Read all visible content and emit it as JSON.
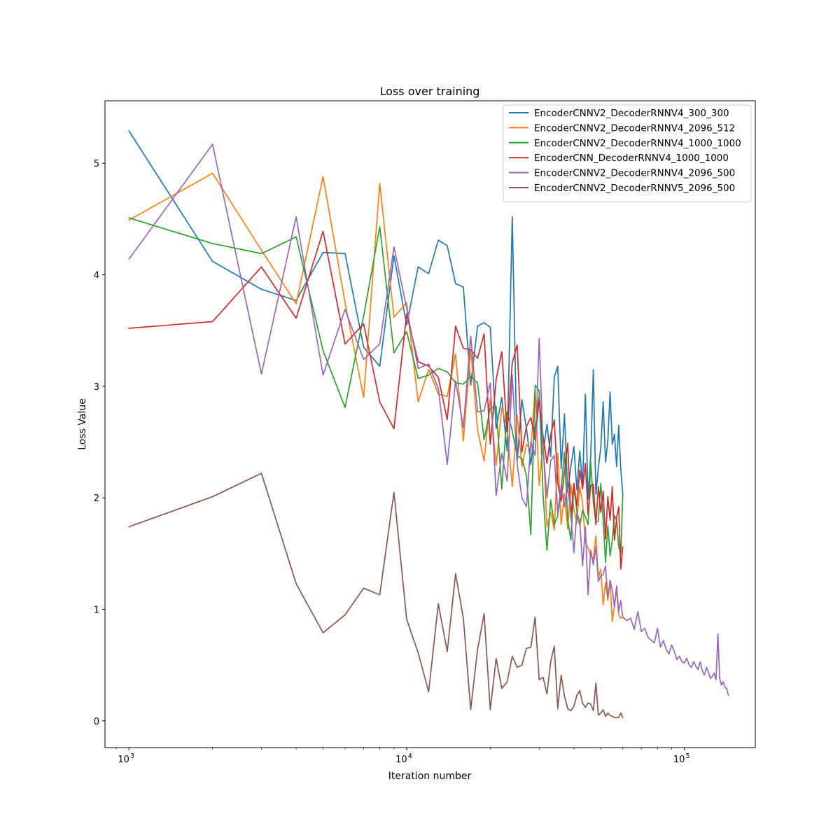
{
  "chart_data": {
    "type": "line",
    "title": "Loss over training",
    "xlabel": "Iteration number",
    "ylabel": "Loss Value",
    "xscale": "log",
    "xlim": [
      820,
      180000
    ],
    "ylim": [
      -0.24,
      5.56
    ],
    "x_ticks": [
      {
        "value": 1000,
        "base": "10",
        "exp": "3"
      },
      {
        "value": 10000,
        "base": "10",
        "exp": "4"
      },
      {
        "value": 100000,
        "base": "10",
        "exp": "5"
      }
    ],
    "y_ticks": [
      {
        "value": 0,
        "label": "0"
      },
      {
        "value": 1,
        "label": "1"
      },
      {
        "value": 2,
        "label": "2"
      },
      {
        "value": 3,
        "label": "3"
      },
      {
        "value": 4,
        "label": "4"
      },
      {
        "value": 5,
        "label": "5"
      }
    ],
    "legend_position": "top-right",
    "series": [
      {
        "name": "EncoderCNNV2_DecoderRNNV4_300_300",
        "color": "#1f77b4",
        "x": [
          1000,
          2000,
          3000,
          4000,
          5000,
          6000,
          7000,
          8000,
          9000,
          10000,
          11000,
          12000,
          13000,
          14000,
          15000,
          16000,
          17000,
          18000,
          19000,
          20000,
          21000,
          22000,
          23000,
          24000,
          25000,
          26000,
          27000,
          28000,
          29000,
          30000,
          31000,
          32000,
          33000,
          34000,
          35000,
          36000,
          37000,
          38000,
          39000,
          40000,
          41000,
          42000,
          43000,
          44000,
          45000,
          46000,
          47000,
          48000,
          49000,
          50000,
          51000,
          52000,
          53000,
          54000,
          55000,
          56000,
          57000,
          58000,
          59000,
          60000
        ],
        "y": [
          5.29,
          4.12,
          3.87,
          3.77,
          4.2,
          4.19,
          3.35,
          3.18,
          4.17,
          3.55,
          4.07,
          4.01,
          4.31,
          4.26,
          3.92,
          3.89,
          3.01,
          3.54,
          3.57,
          3.53,
          2.62,
          2.9,
          2.42,
          4.52,
          2.33,
          2.88,
          2.62,
          2.3,
          2.63,
          2.91,
          2.4,
          2.66,
          2.37,
          3.08,
          3.18,
          2.26,
          2.75,
          2.05,
          2.28,
          2.46,
          2.07,
          2.42,
          2.11,
          2.93,
          1.99,
          2.38,
          3.15,
          2.03,
          2.27,
          2.45,
          2.86,
          2.32,
          2.51,
          2.95,
          2.48,
          2.57,
          2.28,
          2.65,
          2.26,
          2.03
        ]
      },
      {
        "name": "EncoderCNNV2_DecoderRNNV4_2096_512",
        "color": "#ff7f0e",
        "x": [
          1000,
          2000,
          3000,
          4000,
          5000,
          6000,
          7000,
          8000,
          9000,
          10000,
          11000,
          12000,
          13000,
          14000,
          15000,
          16000,
          17000,
          18000,
          19000,
          20000,
          21000,
          22000,
          23000,
          24000,
          25000,
          26000,
          27000,
          28000,
          29000,
          30000,
          31000,
          32000,
          33000,
          34000,
          35000,
          36000,
          37000,
          38000,
          39000,
          40000,
          41000,
          42000,
          43000,
          44000,
          45000,
          46000,
          47000,
          48000,
          49000,
          50000,
          51000,
          52000,
          53000,
          54000,
          55000,
          56000,
          57000,
          58000,
          59000,
          60000
        ],
        "y": [
          4.49,
          4.91,
          4.22,
          3.74,
          4.88,
          3.75,
          2.9,
          4.82,
          3.62,
          3.75,
          2.86,
          3.15,
          2.93,
          2.91,
          3.29,
          2.51,
          3.33,
          2.61,
          2.33,
          2.89,
          2.29,
          2.81,
          2.63,
          2.1,
          2.74,
          2.28,
          2.48,
          2.43,
          2.98,
          2.11,
          2.5,
          1.74,
          1.87,
          1.71,
          2.4,
          1.76,
          2.04,
          1.72,
          2.12,
          1.9,
          1.77,
          2.1,
          1.95,
          1.6,
          1.55,
          1.48,
          1.45,
          1.66,
          1.28,
          1.36,
          1.04,
          1.24,
          1.08,
          1.25,
          0.89,
          1.03,
          1.18,
          0.95,
          0.92,
          0.93
        ]
      },
      {
        "name": "EncoderCNNV2_DecoderRNNV4_1000_1000",
        "color": "#2ca02c",
        "x": [
          1000,
          2000,
          3000,
          4000,
          5000,
          6000,
          7000,
          8000,
          9000,
          10000,
          11000,
          12000,
          13000,
          14000,
          15000,
          16000,
          17000,
          18000,
          19000,
          20000,
          21000,
          22000,
          23000,
          24000,
          25000,
          26000,
          27000,
          28000,
          29000,
          30000,
          31000,
          32000,
          33000,
          34000,
          35000,
          36000,
          37000,
          38000,
          39000,
          40000,
          41000,
          42000,
          43000,
          44000,
          45000,
          46000,
          47000,
          48000,
          49000,
          50000,
          51000,
          52000,
          53000,
          54000,
          55000,
          56000,
          57000,
          58000,
          59000,
          60000
        ],
        "y": [
          4.51,
          4.28,
          4.19,
          4.34,
          3.32,
          2.81,
          3.63,
          4.43,
          3.3,
          3.49,
          3.07,
          3.1,
          3.16,
          3.13,
          3.03,
          3.02,
          3.09,
          3.03,
          2.52,
          2.8,
          2.82,
          2.08,
          2.77,
          2.6,
          2.38,
          2.35,
          2.2,
          1.67,
          3.01,
          2.96,
          2.02,
          1.53,
          1.98,
          1.76,
          1.84,
          2.07,
          2.41,
          1.81,
          1.62,
          2.1,
          1.88,
          1.75,
          1.89,
          1.83,
          1.76,
          2.32,
          1.96,
          1.78,
          1.79,
          2.13,
          1.8,
          1.42,
          1.75,
          1.48,
          1.62,
          1.84,
          1.8,
          1.56,
          1.5,
          2.03
        ]
      },
      {
        "name": "EncoderCNN_DecoderRNNV4_1000_1000",
        "color": "#d62728",
        "x": [
          1000,
          2000,
          3000,
          4000,
          5000,
          6000,
          7000,
          8000,
          9000,
          10000,
          11000,
          12000,
          13000,
          14000,
          15000,
          16000,
          17000,
          18000,
          19000,
          20000,
          21000,
          22000,
          23000,
          24000,
          25000,
          26000,
          27000,
          28000,
          29000,
          30000,
          31000,
          32000,
          33000,
          34000,
          35000,
          36000,
          37000,
          38000,
          39000,
          40000,
          41000,
          42000,
          43000,
          44000,
          45000,
          46000,
          47000,
          48000,
          49000,
          50000,
          51000,
          52000,
          53000,
          54000,
          55000,
          56000,
          57000,
          58000,
          59000,
          60000
        ],
        "y": [
          3.52,
          3.58,
          4.07,
          3.61,
          4.39,
          3.38,
          3.56,
          2.86,
          2.62,
          3.65,
          3.22,
          3.18,
          3.08,
          2.7,
          3.54,
          3.34,
          3.33,
          3.25,
          3.47,
          2.48,
          3.06,
          3.31,
          2.59,
          3.21,
          3.37,
          2.41,
          2.64,
          2.72,
          2.52,
          2.88,
          2.55,
          2.31,
          2.56,
          2.7,
          2.13,
          1.97,
          2.23,
          2.49,
          1.82,
          2.13,
          1.93,
          2.25,
          2.08,
          2.31,
          1.85,
          2.11,
          2.12,
          1.76,
          2.1,
          1.87,
          2.06,
          1.63,
          2.01,
          1.8,
          2.1,
          1.62,
          1.82,
          1.92,
          1.36,
          1.56
        ]
      },
      {
        "name": "EncoderCNNV2_DecoderRNNV4_2096_500",
        "color": "#9467bd",
        "x": [
          1000,
          2000,
          3000,
          4000,
          5000,
          6000,
          7000,
          8000,
          9000,
          10000,
          11000,
          12000,
          13000,
          14000,
          15000,
          16000,
          17000,
          18000,
          19000,
          20000,
          21000,
          22000,
          23000,
          24000,
          25000,
          26000,
          27000,
          28000,
          29000,
          30000,
          31000,
          32000,
          33000,
          34000,
          35000,
          36000,
          37000,
          38000,
          39000,
          40000,
          41000,
          42000,
          43000,
          44000,
          45000,
          46000,
          47000,
          48000,
          49000,
          50000,
          51000,
          52000,
          53000,
          54000,
          55000,
          56000,
          57000,
          58000,
          59000,
          60000,
          62000,
          64000,
          66000,
          68000,
          70000,
          72000,
          74000,
          76000,
          78000,
          80000,
          82000,
          84000,
          86000,
          88000,
          90000,
          92000,
          94000,
          96000,
          98000,
          100000,
          102000,
          104000,
          106000,
          108000,
          110000,
          112000,
          114000,
          116000,
          118000,
          120000,
          122000,
          124000,
          126000,
          128000,
          130000,
          132000,
          134000,
          136000,
          138000,
          140000,
          142000,
          144000
        ],
        "y": [
          4.14,
          5.17,
          3.11,
          4.52,
          3.1,
          3.69,
          3.24,
          3.38,
          4.25,
          3.7,
          3.16,
          3.2,
          2.98,
          2.3,
          3.05,
          2.63,
          3.45,
          2.77,
          2.78,
          3.03,
          2.02,
          2.4,
          2.15,
          3.1,
          2.3,
          2.0,
          1.92,
          2.5,
          2.38,
          3.43,
          2.44,
          2.0,
          2.33,
          2.38,
          1.86,
          2.11,
          1.92,
          2.1,
          1.86,
          1.51,
          1.87,
          1.79,
          1.39,
          1.74,
          1.13,
          1.53,
          1.4,
          1.56,
          1.25,
          1.3,
          1.31,
          1.39,
          1.1,
          1.26,
          1.17,
          1.02,
          1.21,
          0.98,
          1.08,
          0.93,
          0.9,
          0.92,
          0.82,
          0.98,
          0.8,
          0.83,
          0.75,
          0.72,
          0.7,
          0.83,
          0.66,
          0.72,
          0.64,
          0.6,
          0.68,
          0.62,
          0.55,
          0.58,
          0.53,
          0.52,
          0.56,
          0.5,
          0.48,
          0.53,
          0.49,
          0.46,
          0.53,
          0.45,
          0.41,
          0.48,
          0.44,
          0.38,
          0.4,
          0.43,
          0.37,
          0.78,
          0.38,
          0.32,
          0.35,
          0.3,
          0.29,
          0.23
        ]
      },
      {
        "name": "EncoderCNNV2_DecoderRNNV5_2096_500",
        "color": "#8c564b",
        "x": [
          1000,
          2000,
          3000,
          4000,
          5000,
          6000,
          7000,
          8000,
          9000,
          10000,
          11000,
          12000,
          13000,
          14000,
          15000,
          16000,
          17000,
          18000,
          19000,
          20000,
          21000,
          22000,
          23000,
          24000,
          25000,
          26000,
          27000,
          28000,
          29000,
          30000,
          31000,
          32000,
          33000,
          34000,
          35000,
          36000,
          37000,
          38000,
          39000,
          40000,
          41000,
          42000,
          43000,
          44000,
          45000,
          46000,
          47000,
          48000,
          49000,
          50000,
          51000,
          52000,
          53000,
          54000,
          55000,
          56000,
          57000,
          58000,
          59000,
          60000
        ],
        "y": [
          1.74,
          2.01,
          2.22,
          1.23,
          0.79,
          0.95,
          1.19,
          1.13,
          2.05,
          0.91,
          0.61,
          0.26,
          1.05,
          0.62,
          1.32,
          0.92,
          0.1,
          0.64,
          0.96,
          0.1,
          0.56,
          0.29,
          0.35,
          0.58,
          0.48,
          0.5,
          0.65,
          0.66,
          0.93,
          0.37,
          0.39,
          0.24,
          0.53,
          0.67,
          0.11,
          0.41,
          0.22,
          0.11,
          0.09,
          0.13,
          0.23,
          0.27,
          0.16,
          0.12,
          0.16,
          0.15,
          0.09,
          0.34,
          0.05,
          0.07,
          0.1,
          0.04,
          0.07,
          0.05,
          0.04,
          0.03,
          0.03,
          0.03,
          0.07,
          0.03
        ]
      }
    ]
  }
}
